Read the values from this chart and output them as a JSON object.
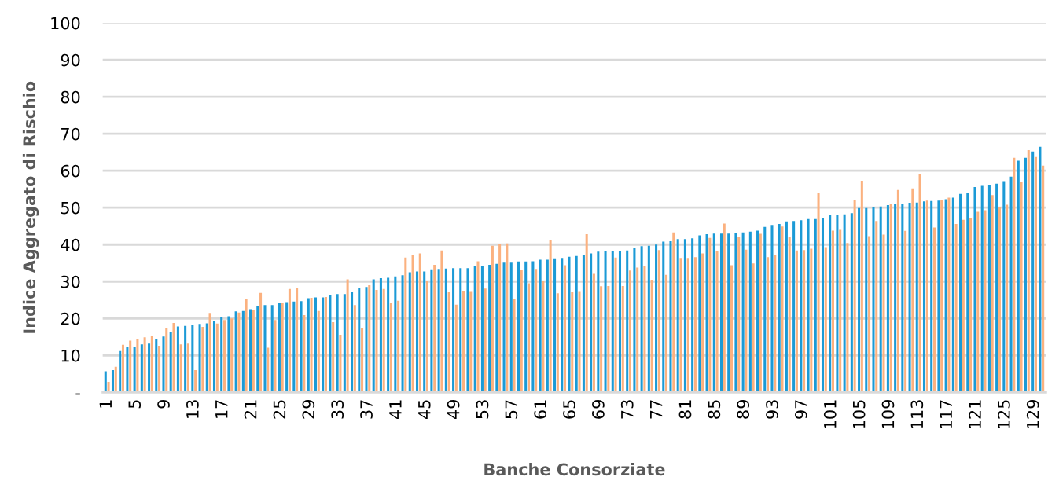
{
  "chart_data": {
    "type": "bar",
    "xlabel": "Banche Consorziate",
    "ylabel": "Indice Aggregato di Rischio",
    "categories": [
      "1",
      null,
      null,
      null,
      "5",
      null,
      null,
      null,
      "9",
      null,
      null,
      null,
      "13",
      null,
      null,
      null,
      "17",
      null,
      null,
      null,
      "21",
      null,
      null,
      null,
      "25",
      null,
      null,
      null,
      "29",
      null,
      null,
      null,
      "33",
      null,
      null,
      null,
      "37",
      null,
      null,
      null,
      "41",
      null,
      null,
      null,
      "45",
      null,
      null,
      null,
      "49",
      null,
      null,
      null,
      "53",
      null,
      null,
      null,
      "57",
      null,
      null,
      null,
      "61",
      null,
      null,
      null,
      "65",
      null,
      null,
      null,
      "69",
      null,
      null,
      null,
      "73",
      null,
      null,
      null,
      "77",
      null,
      null,
      null,
      "81",
      null,
      null,
      null,
      "85",
      null,
      null,
      null,
      "89",
      null,
      null,
      null,
      "93",
      null,
      null,
      null,
      "97",
      null,
      null,
      null,
      "101",
      null,
      null,
      null,
      "105",
      null,
      null,
      null,
      "109",
      null,
      null,
      null,
      "113",
      null,
      null,
      null,
      "117",
      null,
      null,
      null,
      "121",
      null,
      null,
      null,
      "125",
      null,
      null,
      null,
      "129",
      null
    ],
    "series": [
      {
        "color": "#1b9ad6",
        "values": [
          5.7,
          6.0,
          11.2,
          12.2,
          12.4,
          13.0,
          13.2,
          14.3,
          15.1,
          16.3,
          17.8,
          18.0,
          18.2,
          18.5,
          18.7,
          19.4,
          20.4,
          20.6,
          21.9,
          22.0,
          22.5,
          23.4,
          23.6,
          23.6,
          24.2,
          24.4,
          24.6,
          24.7,
          25.5,
          25.7,
          25.7,
          26.2,
          26.6,
          26.6,
          27.1,
          28.3,
          28.5,
          30.6,
          30.9,
          31.0,
          31.4,
          31.7,
          32.5,
          32.7,
          32.7,
          33.3,
          33.4,
          33.5,
          33.6,
          33.6,
          33.6,
          34.1,
          34.1,
          34.5,
          34.8,
          35.1,
          35.1,
          35.4,
          35.4,
          35.5,
          35.9,
          35.9,
          36.3,
          36.4,
          36.7,
          36.9,
          37.2,
          37.6,
          38.1,
          38.2,
          38.2,
          38.2,
          38.4,
          39.2,
          39.6,
          39.7,
          40.0,
          40.8,
          40.9,
          41.5,
          41.5,
          41.7,
          42.5,
          42.8,
          43.0,
          43.0,
          43.0,
          43.1,
          43.3,
          43.5,
          43.8,
          44.8,
          45.3,
          45.6,
          46.3,
          46.4,
          46.6,
          46.9,
          46.9,
          47.2,
          47.9,
          48.0,
          48.2,
          48.5,
          49.9,
          49.9,
          50.1,
          50.3,
          50.7,
          50.9,
          51.0,
          51.3,
          51.4,
          51.7,
          51.8,
          51.9,
          52.3,
          52.7,
          53.7,
          54.1,
          55.6,
          55.9,
          56.2,
          56.5,
          57.2,
          58.4,
          62.7,
          63.5,
          65.2,
          66.5
        ]
      },
      {
        "color": "#fbb17f",
        "values": [
          2.8,
          6.9,
          12.9,
          14.0,
          14.3,
          14.9,
          15.2,
          12.6,
          17.4,
          18.8,
          13.0,
          13.2,
          6.0,
          17.7,
          21.5,
          18.6,
          19.6,
          20.0,
          21.6,
          25.3,
          22.2,
          26.9,
          12.1,
          19.6,
          24.1,
          28.0,
          28.3,
          20.9,
          25.6,
          22.0,
          25.8,
          19.0,
          15.6,
          30.6,
          23.6,
          17.5,
          29.0,
          27.7,
          28.0,
          24.3,
          24.8,
          36.5,
          37.3,
          37.6,
          30.1,
          34.5,
          38.4,
          27.3,
          23.7,
          27.5,
          27.4,
          35.5,
          28.1,
          39.7,
          40.1,
          40.3,
          25.3,
          33.2,
          29.5,
          33.4,
          30.1,
          41.2,
          26.8,
          34.4,
          27.3,
          27.4,
          42.8,
          32.1,
          28.7,
          28.8,
          36.5,
          28.8,
          33.0,
          33.8,
          34.2,
          30.5,
          38.5,
          31.8,
          43.3,
          36.4,
          36.4,
          36.6,
          37.6,
          41.8,
          38.2,
          45.7,
          34.4,
          42.2,
          38.6,
          34.9,
          42.9,
          36.6,
          37.1,
          44.9,
          42.0,
          38.4,
          38.5,
          38.9,
          54.1,
          39.3,
          43.8,
          44.0,
          40.4,
          52.0,
          57.3,
          42.3,
          46.4,
          42.7,
          50.9,
          54.8,
          43.7,
          55.2,
          59.1,
          51.9,
          44.6,
          52.2,
          52.7,
          45.6,
          46.7,
          47.2,
          48.9,
          49.3,
          53.4,
          50.1,
          50.8,
          63.5,
          57.0,
          65.6,
          63.7,
          61.4
        ]
      }
    ],
    "ylim": [
      0,
      100
    ],
    "yticks": [
      {
        "value": 0,
        "label": "-"
      },
      10,
      20,
      30,
      40,
      50,
      60,
      70,
      80,
      90,
      100
    ],
    "grid": "y"
  }
}
